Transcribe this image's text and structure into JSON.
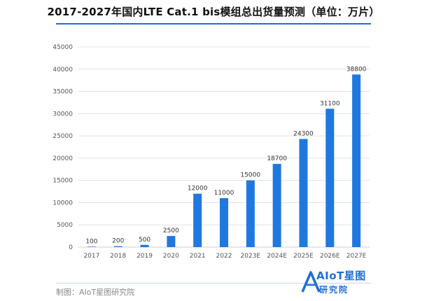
{
  "chart_data": {
    "type": "bar",
    "title": "2017-2027年国内LTE Cat.1 bis模组总出货量预测（单位：万片）",
    "categories": [
      "2017",
      "2018",
      "2019",
      "2020",
      "2021",
      "2022",
      "2023E",
      "2024E",
      "2025E",
      "2026E",
      "2027E"
    ],
    "values": [
      100,
      200,
      500,
      2500,
      12000,
      11000,
      15000,
      18700,
      24300,
      31100,
      38800
    ],
    "ylim": [
      0,
      45000
    ],
    "yticks": [
      "0",
      "5000",
      "10000",
      "15000",
      "20000",
      "25000",
      "30000",
      "35000",
      "40000",
      "45000"
    ],
    "ytick_values": [
      0,
      5000,
      10000,
      15000,
      20000,
      25000,
      30000,
      35000,
      40000,
      45000
    ],
    "grid": true,
    "data_labels": [
      "100",
      "200",
      "500",
      "2500",
      "12000",
      "11000",
      "15000",
      "18700",
      "24300",
      "31100",
      "38800"
    ],
    "bar_color": "#1f78e0",
    "grid_color": "#e3e3e3"
  },
  "footer": {
    "credit": "制图：AIoT星图研究院",
    "logo_main": "AIoT星图",
    "logo_sub": "研究院"
  }
}
